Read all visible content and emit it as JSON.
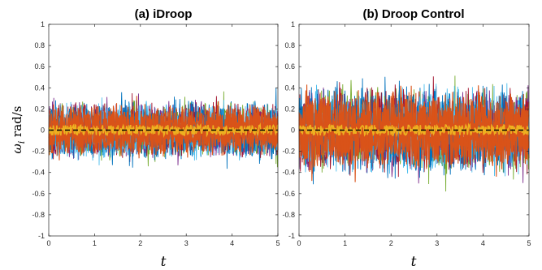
{
  "chart_data": [
    {
      "type": "line",
      "title": "(a) iDroop",
      "xlabel": "t",
      "ylabel": "ω_i rad/s",
      "xlim": [
        0,
        5
      ],
      "ylim": [
        -1,
        1
      ],
      "xticks": [
        "0",
        "1",
        "2",
        "3",
        "4",
        "5"
      ],
      "yticks": [
        "-1",
        "-0.8",
        "-0.6",
        "-0.4",
        "-0.2",
        "0",
        "0.2",
        "0.4",
        "0.6",
        "0.8",
        "1"
      ],
      "noise_band": 0.3,
      "mean_line": 0.0,
      "series_colors": [
        "#0072BD",
        "#D95319",
        "#EDB120",
        "#7E2F8E",
        "#77AC30",
        "#4DBEEE",
        "#A2142F"
      ]
    },
    {
      "type": "line",
      "title": "(b) Droop Control",
      "xlabel": "t",
      "ylabel": "",
      "xlim": [
        0,
        5
      ],
      "ylim": [
        -1,
        1
      ],
      "xticks": [
        "0",
        "1",
        "2",
        "3",
        "4",
        "5"
      ],
      "yticks": [
        "-1",
        "-0.8",
        "-0.6",
        "-0.4",
        "-0.2",
        "0",
        "0.2",
        "0.4",
        "0.6",
        "0.8",
        "1"
      ],
      "noise_band": 0.45,
      "mean_line": 0.0,
      "series_colors": [
        "#0072BD",
        "#D95319",
        "#EDB120",
        "#7E2F8E",
        "#77AC30",
        "#4DBEEE",
        "#A2142F"
      ]
    }
  ]
}
